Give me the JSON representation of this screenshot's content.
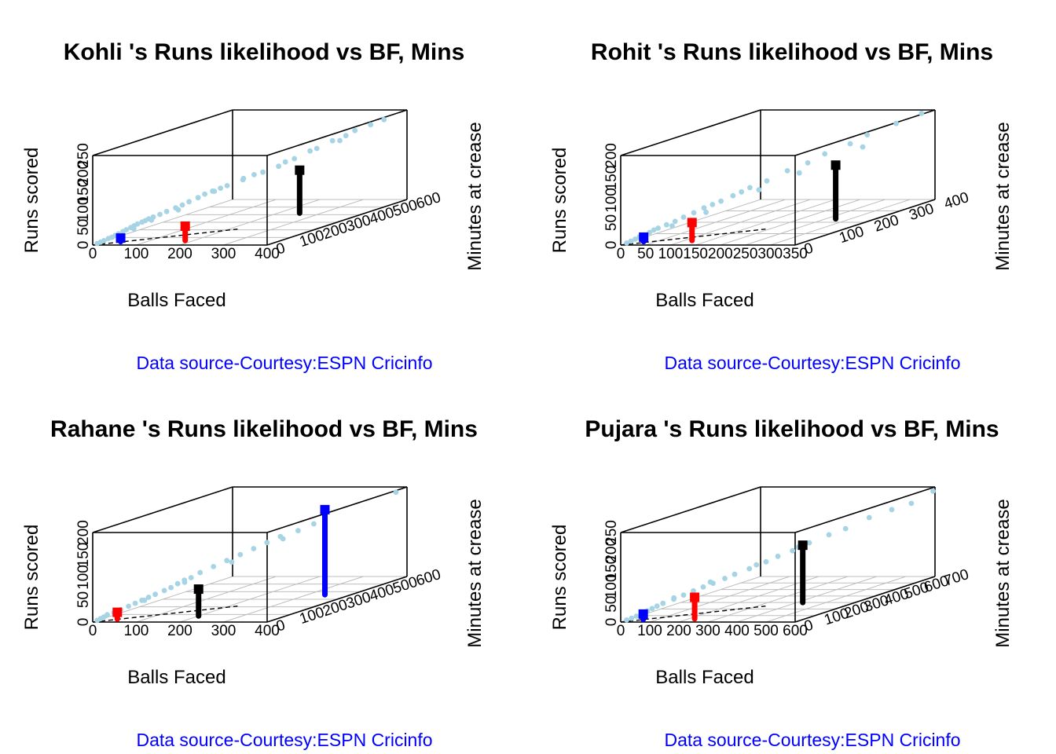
{
  "chart_data": [
    {
      "type": "scatter3d",
      "title": "Kohli 's Runs likelihood vs BF, Mins",
      "xlabel": "Balls Faced",
      "ylabel": "Minutes at crease",
      "zlabel": "Runs scored",
      "xticks": [
        "0",
        "100",
        "200",
        "300",
        "400"
      ],
      "yticks": [
        "0",
        "100",
        "200",
        "300",
        "400",
        "500",
        "600"
      ],
      "zticks": [
        "0",
        "50",
        "100",
        "150",
        "200",
        "250"
      ],
      "xlim": [
        0,
        400
      ],
      "ylim": [
        0,
        600
      ],
      "zlim": [
        0,
        250
      ],
      "source": "Data source-Courtesy:ESPN Cricinfo",
      "point_color": "#a6d4e4",
      "points": [
        [
          5,
          10,
          2
        ],
        [
          10,
          15,
          5
        ],
        [
          15,
          20,
          8
        ],
        [
          20,
          30,
          12
        ],
        [
          25,
          35,
          14
        ],
        [
          30,
          40,
          18
        ],
        [
          35,
          45,
          22
        ],
        [
          40,
          55,
          26
        ],
        [
          45,
          60,
          30
        ],
        [
          50,
          70,
          34
        ],
        [
          55,
          75,
          38
        ],
        [
          60,
          80,
          42
        ],
        [
          65,
          90,
          45
        ],
        [
          70,
          95,
          48
        ],
        [
          75,
          100,
          52
        ],
        [
          80,
          110,
          55
        ],
        [
          90,
          120,
          60
        ],
        [
          100,
          130,
          66
        ],
        [
          110,
          150,
          72
        ],
        [
          120,
          160,
          78
        ],
        [
          130,
          170,
          85
        ],
        [
          140,
          190,
          92
        ],
        [
          150,
          200,
          100
        ],
        [
          160,
          215,
          105
        ],
        [
          170,
          230,
          110
        ],
        [
          180,
          240,
          115
        ],
        [
          200,
          270,
          125
        ],
        [
          215,
          290,
          135
        ],
        [
          230,
          300,
          140
        ],
        [
          250,
          330,
          150
        ],
        [
          270,
          360,
          165
        ],
        [
          290,
          390,
          180
        ],
        [
          300,
          400,
          185
        ],
        [
          320,
          430,
          200
        ],
        [
          340,
          450,
          210
        ],
        [
          350,
          470,
          220
        ],
        [
          370,
          500,
          230
        ],
        [
          390,
          520,
          240
        ],
        [
          30,
          120,
          20
        ],
        [
          60,
          140,
          40
        ],
        [
          100,
          180,
          60
        ],
        [
          140,
          260,
          95
        ],
        [
          180,
          310,
          120
        ],
        [
          260,
          340,
          160
        ],
        [
          310,
          480,
          190
        ]
      ],
      "markers": [
        {
          "color": "#0000ff",
          "x": 40,
          "y": 45,
          "z_from": 0,
          "z_to": 10
        },
        {
          "color": "#ff0000",
          "x": 180,
          "y": 60,
          "z_from": 0,
          "z_to": 40
        },
        {
          "color": "#000000",
          "x": 250,
          "y": 420,
          "z_from": 0,
          "z_to": 120
        }
      ]
    },
    {
      "type": "scatter3d",
      "title": "Rohit 's Runs likelihood vs BF, Mins",
      "xlabel": "Balls Faced",
      "ylabel": "Minutes at crease",
      "zlabel": "Runs scored",
      "xticks": [
        "0",
        "50",
        "100",
        "150",
        "200",
        "250",
        "300",
        "350"
      ],
      "yticks": [
        "0",
        "100",
        "200",
        "300",
        "400"
      ],
      "zticks": [
        "0",
        "50",
        "100",
        "150",
        "200"
      ],
      "xlim": [
        0,
        350
      ],
      "ylim": [
        0,
        400
      ],
      "zlim": [
        0,
        200
      ],
      "source": "Data source-Courtesy:ESPN Cricinfo",
      "point_color": "#a6d4e4",
      "points": [
        [
          5,
          10,
          2
        ],
        [
          10,
          15,
          5
        ],
        [
          15,
          20,
          8
        ],
        [
          20,
          25,
          12
        ],
        [
          25,
          30,
          15
        ],
        [
          30,
          40,
          18
        ],
        [
          35,
          45,
          22
        ],
        [
          40,
          50,
          25
        ],
        [
          50,
          60,
          30
        ],
        [
          60,
          70,
          35
        ],
        [
          70,
          80,
          42
        ],
        [
          80,
          95,
          48
        ],
        [
          90,
          110,
          55
        ],
        [
          100,
          120,
          60
        ],
        [
          110,
          130,
          65
        ],
        [
          120,
          150,
          72
        ],
        [
          130,
          160,
          78
        ],
        [
          140,
          170,
          85
        ],
        [
          160,
          190,
          95
        ],
        [
          180,
          220,
          110
        ],
        [
          200,
          250,
          120
        ],
        [
          220,
          270,
          135
        ],
        [
          250,
          300,
          150
        ],
        [
          270,
          320,
          165
        ],
        [
          300,
          360,
          180
        ],
        [
          330,
          390,
          195
        ],
        [
          40,
          90,
          20
        ],
        [
          80,
          130,
          40
        ],
        [
          130,
          210,
          70
        ],
        [
          190,
          240,
          100
        ],
        [
          240,
          350,
          130
        ]
      ],
      "markers": [
        {
          "color": "#0000ff",
          "x": 25,
          "y": 30,
          "z_from": 0,
          "z_to": 10
        },
        {
          "color": "#ff0000",
          "x": 115,
          "y": 40,
          "z_from": 0,
          "z_to": 40
        },
        {
          "color": "#000000",
          "x": 270,
          "y": 230,
          "z_from": 0,
          "z_to": 120
        }
      ]
    },
    {
      "type": "scatter3d",
      "title": "Rahane 's Runs likelihood vs BF, Mins",
      "xlabel": "Balls Faced",
      "ylabel": "Minutes at crease",
      "zlabel": "Runs scored",
      "xticks": [
        "0",
        "100",
        "200",
        "300",
        "400"
      ],
      "yticks": [
        "0",
        "100",
        "200",
        "300",
        "400",
        "500",
        "600"
      ],
      "zticks": [
        "0",
        "50",
        "100",
        "150",
        "200"
      ],
      "xlim": [
        0,
        400
      ],
      "ylim": [
        0,
        600
      ],
      "zlim": [
        0,
        200
      ],
      "source": "Data source-Courtesy:ESPN Cricinfo",
      "point_color": "#a6d4e4",
      "points": [
        [
          5,
          10,
          2
        ],
        [
          10,
          15,
          5
        ],
        [
          15,
          20,
          8
        ],
        [
          20,
          25,
          12
        ],
        [
          30,
          35,
          15
        ],
        [
          40,
          45,
          20
        ],
        [
          50,
          60,
          25
        ],
        [
          60,
          70,
          30
        ],
        [
          70,
          80,
          35
        ],
        [
          80,
          90,
          40
        ],
        [
          90,
          100,
          45
        ],
        [
          100,
          120,
          50
        ],
        [
          110,
          130,
          55
        ],
        [
          120,
          140,
          62
        ],
        [
          130,
          150,
          68
        ],
        [
          140,
          160,
          72
        ],
        [
          150,
          180,
          80
        ],
        [
          170,
          200,
          90
        ],
        [
          190,
          220,
          100
        ],
        [
          210,
          240,
          110
        ],
        [
          230,
          260,
          120
        ],
        [
          250,
          280,
          130
        ],
        [
          270,
          300,
          140
        ],
        [
          300,
          320,
          150
        ],
        [
          320,
          350,
          160
        ],
        [
          380,
          590,
          190
        ],
        [
          60,
          110,
          30
        ],
        [
          120,
          170,
          60
        ],
        [
          180,
          260,
          90
        ],
        [
          260,
          330,
          130
        ]
      ],
      "markers": [
        {
          "color": "#ff0000",
          "x": 35,
          "y": 40,
          "z_from": 0,
          "z_to": 15
        },
        {
          "color": "#000000",
          "x": 200,
          "y": 80,
          "z_from": 0,
          "z_to": 60
        },
        {
          "color": "#0000ff",
          "x": 340,
          "y": 360,
          "z_from": 0,
          "z_to": 190
        }
      ]
    },
    {
      "type": "scatter3d",
      "title": "Pujara 's Runs likelihood vs BF, Mins",
      "xlabel": "Balls Faced",
      "ylabel": "Minutes at crease",
      "zlabel": "Runs scored",
      "xticks": [
        "0",
        "100",
        "200",
        "300",
        "400",
        "500",
        "600"
      ],
      "yticks": [
        "0",
        "100",
        "200",
        "300",
        "400",
        "500",
        "600",
        "700"
      ],
      "zticks": [
        "0",
        "50",
        "100",
        "150",
        "200",
        "250"
      ],
      "xlim": [
        0,
        600
      ],
      "ylim": [
        0,
        700
      ],
      "zlim": [
        0,
        250
      ],
      "source": "Data source-Courtesy:ESPN Cricinfo",
      "point_color": "#a6d4e4",
      "points": [
        [
          10,
          15,
          3
        ],
        [
          20,
          25,
          6
        ],
        [
          30,
          35,
          10
        ],
        [
          40,
          50,
          15
        ],
        [
          50,
          60,
          20
        ],
        [
          60,
          70,
          25
        ],
        [
          70,
          80,
          30
        ],
        [
          80,
          95,
          35
        ],
        [
          100,
          120,
          42
        ],
        [
          120,
          140,
          50
        ],
        [
          140,
          160,
          58
        ],
        [
          160,
          180,
          65
        ],
        [
          180,
          200,
          72
        ],
        [
          200,
          230,
          80
        ],
        [
          220,
          250,
          88
        ],
        [
          250,
          280,
          98
        ],
        [
          280,
          320,
          110
        ],
        [
          300,
          350,
          120
        ],
        [
          330,
          380,
          130
        ],
        [
          360,
          420,
          145
        ],
        [
          400,
          460,
          160
        ],
        [
          430,
          500,
          170
        ],
        [
          470,
          560,
          190
        ],
        [
          520,
          600,
          205
        ],
        [
          560,
          640,
          215
        ],
        [
          600,
          690,
          240
        ],
        [
          80,
          150,
          40
        ],
        [
          150,
          230,
          70
        ],
        [
          240,
          330,
          100
        ],
        [
          350,
          380,
          140
        ]
      ],
      "markers": [
        {
          "color": "#0000ff",
          "x": 50,
          "y": 40,
          "z_from": 0,
          "z_to": 15
        },
        {
          "color": "#ff0000",
          "x": 220,
          "y": 50,
          "z_from": 0,
          "z_to": 60
        },
        {
          "color": "#000000",
          "x": 420,
          "y": 300,
          "z_from": 0,
          "z_to": 160
        }
      ]
    }
  ]
}
